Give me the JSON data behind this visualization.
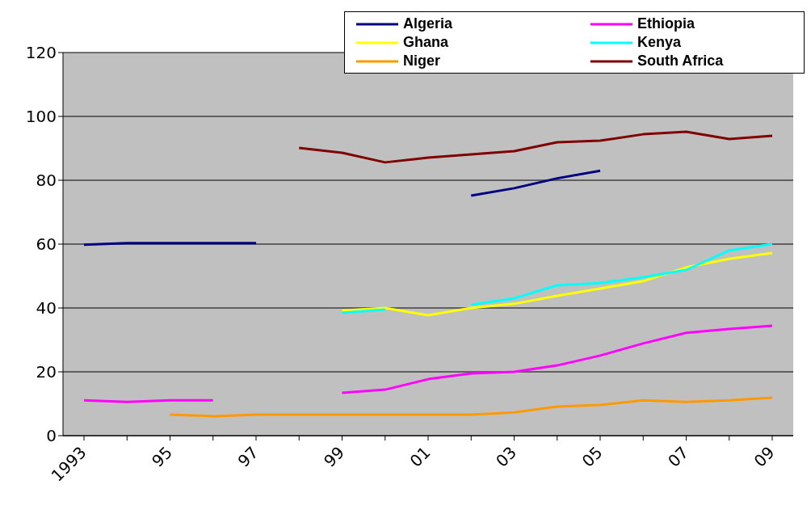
{
  "chart_data": {
    "type": "line",
    "categories": [
      "1993",
      null,
      "95",
      null,
      "97",
      null,
      "99",
      null,
      "01",
      null,
      "03",
      null,
      "05",
      null,
      "07",
      null,
      "09"
    ],
    "series": [
      {
        "name": "Algeria",
        "color": "#000080",
        "values": [
          59.8,
          60.3,
          60.3,
          60.3,
          60.3,
          null,
          null,
          null,
          null,
          75.2,
          77.5,
          80.6,
          83.0,
          null,
          null,
          null,
          null
        ]
      },
      {
        "name": "Ethiopia",
        "color": "#ff00ff",
        "values": [
          11.1,
          10.6,
          11.1,
          11.1,
          null,
          null,
          13.4,
          14.4,
          17.7,
          19.5,
          20.0,
          22.0,
          25.1,
          28.9,
          32.2,
          33.4,
          34.4
        ]
      },
      {
        "name": "Ghana",
        "color": "#ffff00",
        "values": [
          null,
          null,
          null,
          null,
          null,
          null,
          39.2,
          40.0,
          37.7,
          40.0,
          41.3,
          43.8,
          46.1,
          48.4,
          52.7,
          55.4,
          57.2
        ]
      },
      {
        "name": "Kenya",
        "color": "#00ffff",
        "values": [
          null,
          null,
          null,
          null,
          null,
          null,
          38.5,
          39.5,
          null,
          41.0,
          43.0,
          47.1,
          47.8,
          49.6,
          51.9,
          58.0,
          60.0
        ]
      },
      {
        "name": "Niger",
        "color": "#ff9900",
        "values": [
          null,
          null,
          6.6,
          6.1,
          6.6,
          6.6,
          6.6,
          6.6,
          6.6,
          6.6,
          7.3,
          9.1,
          9.6,
          11.1,
          10.6,
          11.1,
          11.9
        ]
      },
      {
        "name": "South Africa",
        "color": "#800000",
        "values": [
          null,
          null,
          null,
          null,
          null,
          90.1,
          88.6,
          85.6,
          87.1,
          88.1,
          89.1,
          91.9,
          92.4,
          94.4,
          95.2,
          92.9,
          93.9
        ]
      }
    ],
    "ylim": [
      0,
      120
    ],
    "yticks": [
      0,
      20,
      40,
      60,
      80,
      100,
      120
    ],
    "grid": "y",
    "legend": "top right",
    "marker": "none",
    "line_style": "solid"
  }
}
